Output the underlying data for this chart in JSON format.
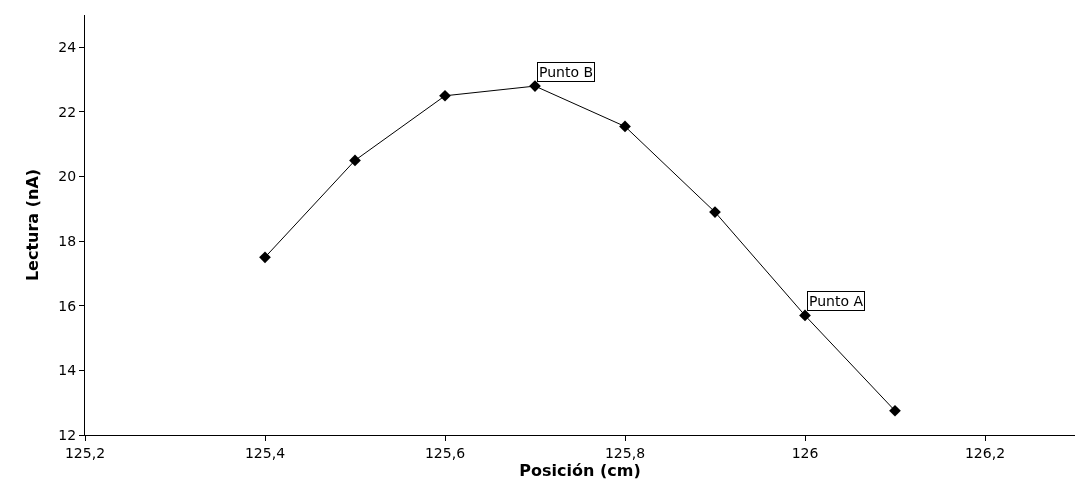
{
  "chart_data": {
    "type": "line",
    "xlabel": "Posición (cm)",
    "ylabel": "Lectura (nA)",
    "x": [
      125.4,
      125.5,
      125.6,
      125.7,
      125.8,
      125.9,
      126.0,
      126.1
    ],
    "series": [
      {
        "color": "#000000",
        "values": [
          17.5,
          20.5,
          22.5,
          22.8,
          21.55,
          18.9,
          15.7,
          12.75
        ]
      }
    ],
    "xlim": [
      125.2,
      126.3
    ],
    "xticks": [
      {
        "value": 125.2,
        "label": "125,2"
      },
      {
        "value": 125.4,
        "label": "125,4"
      },
      {
        "value": 125.6,
        "label": "125,6"
      },
      {
        "value": 125.8,
        "label": "125,8"
      },
      {
        "value": 126,
        "label": "126"
      },
      {
        "value": 126.2,
        "label": "126,2"
      }
    ],
    "ylim": [
      12,
      25
    ],
    "yticks": [
      12,
      14,
      16,
      18,
      20,
      22,
      24
    ],
    "annotations": [
      {
        "text": "Punto B",
        "x": 125.7,
        "y": 22.8
      },
      {
        "text": "Punto A",
        "x": 126.0,
        "y": 15.7
      }
    ],
    "marker": "diamond",
    "line_style": "solid"
  }
}
